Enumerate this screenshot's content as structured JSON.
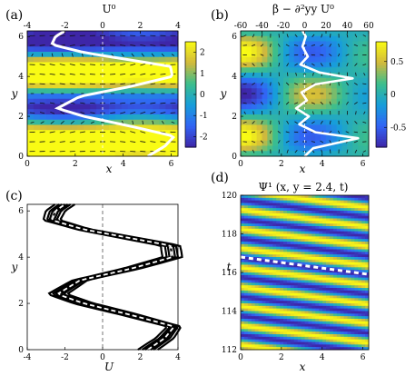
{
  "chart_data": [
    {
      "panel": "(a)",
      "type": "heatmap",
      "title": "U⁰",
      "xlabel": "x",
      "ylabel": "y",
      "xlim": [
        0,
        6.283
      ],
      "ylim": [
        0,
        6.283
      ],
      "x_ticks": [
        "0",
        "2",
        "4",
        "6"
      ],
      "y_ticks": [
        "0",
        "2",
        "4",
        "6"
      ],
      "top_xlim": [
        -4,
        4
      ],
      "top_ticks": [
        "-4",
        "-2",
        "0",
        "2",
        "4"
      ],
      "colorbar": {
        "ticks": [
          "2",
          "1",
          "0",
          "-1",
          "-2"
        ],
        "range": [
          -2.5,
          2.5
        ]
      },
      "profile": {
        "name": "U⁰",
        "y": [
          0,
          0.5,
          1,
          1.5,
          2,
          2.4,
          3,
          3.5,
          4,
          4.5,
          5.2,
          5.6,
          6,
          6.283
        ],
        "values": [
          2.4,
          3.3,
          3.8,
          1.5,
          -1,
          -2.4,
          -1.2,
          1.5,
          3.7,
          3.6,
          -1,
          -2.7,
          -2.5,
          -2.0
        ]
      }
    },
    {
      "panel": "(b)",
      "type": "heatmap",
      "title": "β − ∂²yy U⁰",
      "xlabel": "x",
      "ylabel": "y",
      "xlim": [
        0,
        6.283
      ],
      "ylim": [
        0,
        6.283
      ],
      "x_ticks": [
        "0",
        "2",
        "4",
        "6"
      ],
      "y_ticks": [
        "0",
        "2",
        "4",
        "6"
      ],
      "top_xlim": [
        -60,
        60
      ],
      "top_ticks": [
        "-60",
        "-40",
        "-20",
        "0",
        "20",
        "40",
        "60"
      ],
      "colorbar": {
        "ticks": [
          "0.5",
          "0",
          "-0.5"
        ],
        "range": [
          -0.8,
          0.8
        ]
      },
      "profile": {
        "name": "β − ∂²yy U⁰",
        "y": [
          0,
          0.4,
          0.9,
          1.2,
          1.6,
          2,
          2.4,
          2.8,
          3.2,
          3.6,
          3.9,
          4.2,
          4.6,
          5,
          5.5,
          6,
          6.283
        ],
        "values": [
          0,
          8,
          50,
          10,
          -5,
          4,
          -8,
          2,
          -3,
          10,
          45,
          14,
          -4,
          3,
          -2,
          1,
          -2
        ]
      }
    },
    {
      "panel": "(c)",
      "type": "line",
      "title": "",
      "xlabel": "U",
      "ylabel": "y",
      "xlim": [
        -4,
        4
      ],
      "ylim": [
        0,
        6.283
      ],
      "x_ticks": [
        "-4",
        "-2",
        "0",
        "2",
        "4"
      ],
      "y_ticks": [
        "0",
        "2",
        "4",
        "6"
      ],
      "profile": {
        "y": [
          0,
          0.5,
          1,
          1.5,
          2,
          2.4,
          3,
          3.5,
          4,
          4.5,
          5.2,
          5.6,
          6,
          6.283
        ],
        "values": [
          2.4,
          3.3,
          3.8,
          1.5,
          -1,
          -2.4,
          -1.2,
          1.5,
          3.7,
          3.6,
          -1,
          -2.7,
          -2.5,
          -2.0
        ]
      }
    },
    {
      "panel": "(d)",
      "type": "heatmap",
      "title": "Ψ¹ (x, y = 2.4, t)",
      "xlabel": "x",
      "ylabel": "t",
      "xlim": [
        0,
        6.283
      ],
      "ylim": [
        112,
        120
      ],
      "x_ticks": [
        "0",
        "2",
        "4",
        "6"
      ],
      "y_ticks": [
        "112",
        "114",
        "116",
        "118",
        "120"
      ],
      "phase_line": {
        "x": [
          0,
          6.283
        ],
        "t": [
          116.8,
          115.9
        ]
      }
    }
  ],
  "panel_labels": [
    "(a)",
    "(b)",
    "(c)",
    "(d)"
  ],
  "colors": {
    "low": "#2e2a8c",
    "mid": "#1fa5a6",
    "high": "#f8e22a",
    "profile": "#ffffff"
  }
}
